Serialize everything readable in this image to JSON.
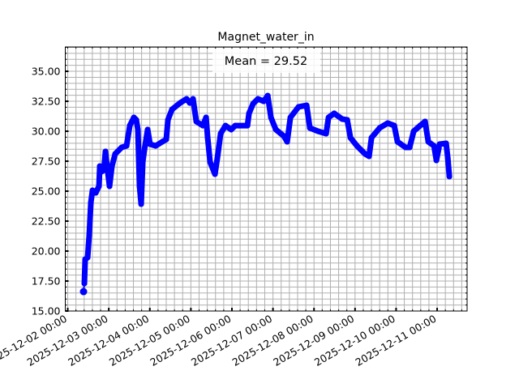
{
  "chart_data": {
    "type": "line",
    "title": "Magnet_water_in",
    "xlabel": "",
    "ylabel": "",
    "x_units": "days since 2025-12-02 00:00",
    "xlim": [
      -0.06,
      9.73
    ],
    "ylim": [
      15.0,
      37.03
    ],
    "grid": true,
    "y_ticks": [
      15.0,
      17.5,
      20.0,
      22.5,
      25.0,
      27.5,
      30.0,
      32.5,
      35.0
    ],
    "y_tick_labels": [
      "15.00",
      "17.50",
      "20.00",
      "22.50",
      "25.00",
      "27.50",
      "30.00",
      "32.50",
      "35.00"
    ],
    "x_ticks": [
      0,
      1,
      2,
      3,
      4,
      5,
      6,
      7,
      8,
      9
    ],
    "x_tick_labels": [
      "2025-12-02 00:00",
      "2025-12-03 00:00",
      "2025-12-04 00:00",
      "2025-12-05 00:00",
      "2025-12-06 00:00",
      "2025-12-07 00:00",
      "2025-12-08 00:00",
      "2025-12-09 00:00",
      "2025-12-10 00:00",
      "2025-12-11 00:00"
    ],
    "legend": {
      "text": "Mean = 29.52",
      "placement": "top-center"
    },
    "series_color": "#0000ff",
    "series": [
      {
        "name": "Magnet_water_in",
        "points": [
          [
            0.385,
            16.62
          ],
          [
            0.405,
            17.3
          ],
          [
            0.425,
            19.32
          ],
          [
            0.484,
            19.46
          ],
          [
            0.524,
            21.35
          ],
          [
            0.563,
            24.05
          ],
          [
            0.603,
            25.07
          ],
          [
            0.682,
            24.86
          ],
          [
            0.761,
            25.41
          ],
          [
            0.781,
            27.09
          ],
          [
            0.82,
            26.62
          ],
          [
            0.88,
            26.76
          ],
          [
            0.919,
            28.31
          ],
          [
            0.958,
            27.09
          ],
          [
            1.018,
            25.41
          ],
          [
            1.077,
            27.09
          ],
          [
            1.156,
            28.11
          ],
          [
            1.314,
            28.65
          ],
          [
            1.433,
            28.78
          ],
          [
            1.512,
            30.47
          ],
          [
            1.611,
            31.15
          ],
          [
            1.67,
            30.95
          ],
          [
            1.709,
            30.14
          ],
          [
            1.749,
            25.41
          ],
          [
            1.789,
            23.92
          ],
          [
            1.828,
            27.43
          ],
          [
            1.868,
            28.45
          ],
          [
            1.947,
            30.14
          ],
          [
            2.006,
            28.92
          ],
          [
            2.144,
            28.78
          ],
          [
            2.302,
            29.12
          ],
          [
            2.401,
            29.32
          ],
          [
            2.441,
            30.95
          ],
          [
            2.54,
            31.82
          ],
          [
            2.737,
            32.36
          ],
          [
            2.895,
            32.7
          ],
          [
            2.974,
            32.36
          ],
          [
            3.053,
            32.7
          ],
          [
            3.132,
            30.81
          ],
          [
            3.291,
            30.47
          ],
          [
            3.37,
            31.15
          ],
          [
            3.409,
            29.46
          ],
          [
            3.468,
            27.43
          ],
          [
            3.587,
            26.42
          ],
          [
            3.646,
            27.77
          ],
          [
            3.725,
            29.8
          ],
          [
            3.844,
            30.47
          ],
          [
            3.982,
            30.14
          ],
          [
            4.081,
            30.47
          ],
          [
            4.378,
            30.47
          ],
          [
            4.417,
            31.49
          ],
          [
            4.516,
            32.3
          ],
          [
            4.634,
            32.7
          ],
          [
            4.773,
            32.5
          ],
          [
            4.872,
            32.97
          ],
          [
            4.951,
            31.15
          ],
          [
            5.069,
            30.14
          ],
          [
            5.267,
            29.59
          ],
          [
            5.346,
            29.12
          ],
          [
            5.425,
            31.15
          ],
          [
            5.623,
            32.03
          ],
          [
            5.82,
            32.16
          ],
          [
            5.899,
            30.27
          ],
          [
            6.097,
            30.0
          ],
          [
            6.295,
            29.8
          ],
          [
            6.354,
            31.15
          ],
          [
            6.492,
            31.49
          ],
          [
            6.69,
            31.01
          ],
          [
            6.809,
            30.95
          ],
          [
            6.888,
            29.46
          ],
          [
            7.046,
            28.78
          ],
          [
            7.243,
            28.11
          ],
          [
            7.342,
            27.91
          ],
          [
            7.401,
            29.46
          ],
          [
            7.599,
            30.27
          ],
          [
            7.796,
            30.68
          ],
          [
            7.955,
            30.47
          ],
          [
            8.034,
            29.12
          ],
          [
            8.231,
            28.65
          ],
          [
            8.33,
            28.65
          ],
          [
            8.429,
            30.0
          ],
          [
            8.587,
            30.47
          ],
          [
            8.706,
            30.81
          ],
          [
            8.785,
            29.12
          ],
          [
            8.923,
            28.78
          ],
          [
            8.982,
            27.57
          ],
          [
            9.061,
            28.92
          ],
          [
            9.219,
            28.99
          ],
          [
            9.259,
            27.77
          ],
          [
            9.298,
            26.22
          ]
        ]
      }
    ]
  }
}
